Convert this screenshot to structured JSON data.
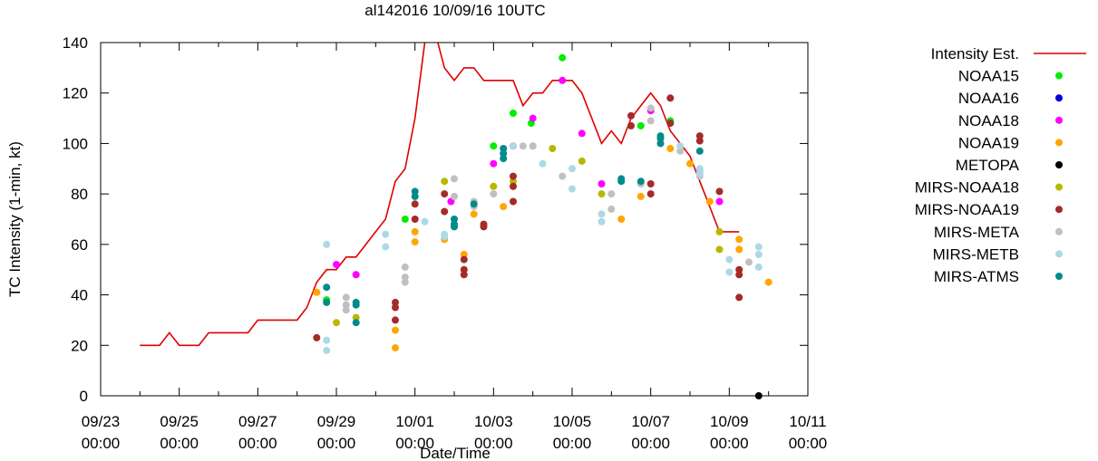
{
  "chart_data": {
    "type": "scatter",
    "title": "al142016 10/09/16 10UTC",
    "xlabel": "Date/Time",
    "ylabel": "TC Intensity (1-min, kt)",
    "ylim": [
      0,
      140
    ],
    "yticks": [
      0,
      20,
      40,
      60,
      80,
      100,
      120,
      140
    ],
    "xlim": [
      "2016-09-23 00:00",
      "2016-10-11 00:00"
    ],
    "xticks": [
      {
        "x": "2016-09-23 00:00",
        "date": "09/23",
        "time": "00:00"
      },
      {
        "x": "2016-09-25 00:00",
        "date": "09/25",
        "time": "00:00"
      },
      {
        "x": "2016-09-27 00:00",
        "date": "09/27",
        "time": "00:00"
      },
      {
        "x": "2016-09-29 00:00",
        "date": "09/29",
        "time": "00:00"
      },
      {
        "x": "2016-10-01 00:00",
        "date": "10/01",
        "time": "00:00"
      },
      {
        "x": "2016-10-03 00:00",
        "date": "10/03",
        "time": "00:00"
      },
      {
        "x": "2016-10-05 00:00",
        "date": "10/05",
        "time": "00:00"
      },
      {
        "x": "2016-10-07 00:00",
        "date": "10/07",
        "time": "00:00"
      },
      {
        "x": "2016-10-09 00:00",
        "date": "10/09",
        "time": "00:00"
      },
      {
        "x": "2016-10-11 00:00",
        "date": "10/11",
        "time": "00:00"
      }
    ],
    "legend_position": "right, outside plot",
    "series": [
      {
        "name": "Intensity Est.",
        "kind": "line",
        "color": "#e00000",
        "points": [
          [
            "2016-09-24 00:00",
            20
          ],
          [
            "2016-09-24 12:00",
            20
          ],
          [
            "2016-09-24 18:00",
            25
          ],
          [
            "2016-09-25 00:00",
            20
          ],
          [
            "2016-09-25 12:00",
            20
          ],
          [
            "2016-09-25 18:00",
            25
          ],
          [
            "2016-09-26 12:00",
            25
          ],
          [
            "2016-09-26 18:00",
            25
          ],
          [
            "2016-09-27 00:00",
            30
          ],
          [
            "2016-09-28 00:00",
            30
          ],
          [
            "2016-09-28 06:00",
            35
          ],
          [
            "2016-09-28 12:00",
            45
          ],
          [
            "2016-09-28 18:00",
            50
          ],
          [
            "2016-09-29 00:00",
            50
          ],
          [
            "2016-09-29 06:00",
            55
          ],
          [
            "2016-09-29 12:00",
            55
          ],
          [
            "2016-09-29 18:00",
            60
          ],
          [
            "2016-09-30 00:00",
            65
          ],
          [
            "2016-09-30 06:00",
            70
          ],
          [
            "2016-09-30 12:00",
            85
          ],
          [
            "2016-09-30 18:00",
            90
          ],
          [
            "2016-10-01 00:00",
            110
          ],
          [
            "2016-10-01 06:00",
            140
          ],
          [
            "2016-10-01 12:00",
            145
          ],
          [
            "2016-10-01 18:00",
            130
          ],
          [
            "2016-10-02 00:00",
            125
          ],
          [
            "2016-10-02 06:00",
            130
          ],
          [
            "2016-10-02 12:00",
            130
          ],
          [
            "2016-10-02 18:00",
            125
          ],
          [
            "2016-10-03 12:00",
            125
          ],
          [
            "2016-10-03 18:00",
            115
          ],
          [
            "2016-10-04 00:00",
            120
          ],
          [
            "2016-10-04 06:00",
            120
          ],
          [
            "2016-10-04 12:00",
            125
          ],
          [
            "2016-10-05 00:00",
            125
          ],
          [
            "2016-10-05 06:00",
            120
          ],
          [
            "2016-10-05 12:00",
            110
          ],
          [
            "2016-10-05 18:00",
            100
          ],
          [
            "2016-10-06 00:00",
            105
          ],
          [
            "2016-10-06 06:00",
            100
          ],
          [
            "2016-10-06 12:00",
            110
          ],
          [
            "2016-10-06 18:00",
            115
          ],
          [
            "2016-10-07 00:00",
            120
          ],
          [
            "2016-10-07 06:00",
            115
          ],
          [
            "2016-10-07 12:00",
            105
          ],
          [
            "2016-10-07 18:00",
            100
          ],
          [
            "2016-10-08 00:00",
            95
          ],
          [
            "2016-10-08 06:00",
            85
          ],
          [
            "2016-10-08 12:00",
            75
          ],
          [
            "2016-10-08 18:00",
            65
          ],
          [
            "2016-10-09 06:00",
            65
          ]
        ]
      },
      {
        "name": "NOAA15",
        "kind": "points",
        "color": "#00ee00",
        "points": [
          [
            "2016-09-28 18:00",
            38
          ],
          [
            "2016-09-30 18:00",
            70
          ],
          [
            "2016-10-03 00:00",
            99
          ],
          [
            "2016-10-03 12:00",
            112
          ],
          [
            "2016-10-03 23:00",
            108
          ],
          [
            "2016-10-04 18:00",
            134
          ],
          [
            "2016-10-06 18:00",
            107
          ],
          [
            "2016-10-07 12:00",
            109
          ]
        ]
      },
      {
        "name": "NOAA16",
        "kind": "points",
        "color": "#0000dd",
        "points": []
      },
      {
        "name": "NOAA18",
        "kind": "points",
        "color": "#ff00ff",
        "points": [
          [
            "2016-09-29 00:00",
            52
          ],
          [
            "2016-09-29 12:00",
            48
          ],
          [
            "2016-10-01 22:00",
            77
          ],
          [
            "2016-10-03 00:00",
            92
          ],
          [
            "2016-10-03 12:00",
            99
          ],
          [
            "2016-10-04 00:00",
            110
          ],
          [
            "2016-10-04 18:00",
            125
          ],
          [
            "2016-10-05 06:00",
            104
          ],
          [
            "2016-10-05 18:00",
            84
          ],
          [
            "2016-10-07 00:00",
            113
          ],
          [
            "2016-10-08 18:00",
            77
          ]
        ]
      },
      {
        "name": "NOAA19",
        "kind": "points",
        "color": "#ffa500",
        "points": [
          [
            "2016-09-28 12:00",
            41
          ],
          [
            "2016-09-30 12:00",
            19
          ],
          [
            "2016-09-30 12:00",
            26
          ],
          [
            "2016-10-01 00:00",
            61
          ],
          [
            "2016-10-01 00:00",
            65
          ],
          [
            "2016-10-01 18:00",
            62
          ],
          [
            "2016-10-02 06:00",
            56
          ],
          [
            "2016-10-02 12:00",
            72
          ],
          [
            "2016-10-03 06:00",
            75
          ],
          [
            "2016-10-06 06:00",
            70
          ],
          [
            "2016-10-06 18:00",
            79
          ],
          [
            "2016-10-07 12:00",
            98
          ],
          [
            "2016-10-08 00:00",
            92
          ],
          [
            "2016-10-08 12:00",
            77
          ],
          [
            "2016-10-09 06:00",
            62
          ],
          [
            "2016-10-09 06:00",
            58
          ],
          [
            "2016-10-10 00:00",
            45
          ]
        ]
      },
      {
        "name": "METOPA",
        "kind": "points",
        "color": "#000000",
        "points": [
          [
            "2016-10-09 18:00",
            0
          ]
        ]
      },
      {
        "name": "MIRS-NOAA18",
        "kind": "points",
        "color": "#b8b800",
        "points": [
          [
            "2016-09-29 00:00",
            29
          ],
          [
            "2016-09-29 12:00",
            31
          ],
          [
            "2016-10-01 18:00",
            85
          ],
          [
            "2016-10-03 00:00",
            83
          ],
          [
            "2016-10-03 12:00",
            85
          ],
          [
            "2016-10-04 00:00",
            99
          ],
          [
            "2016-10-04 12:00",
            98
          ],
          [
            "2016-10-05 06:00",
            93
          ],
          [
            "2016-10-05 18:00",
            80
          ],
          [
            "2016-10-08 18:00",
            65
          ],
          [
            "2016-10-08 18:00",
            58
          ]
        ]
      },
      {
        "name": "MIRS-NOAA19",
        "kind": "points",
        "color": "#a52a2a",
        "points": [
          [
            "2016-09-28 12:00",
            23
          ],
          [
            "2016-09-30 12:00",
            30
          ],
          [
            "2016-09-30 12:00",
            35
          ],
          [
            "2016-09-30 12:00",
            37
          ],
          [
            "2016-10-01 00:00",
            70
          ],
          [
            "2016-10-01 00:00",
            76
          ],
          [
            "2016-10-01 18:00",
            80
          ],
          [
            "2016-10-01 18:00",
            73
          ],
          [
            "2016-10-02 06:00",
            48
          ],
          [
            "2016-10-02 06:00",
            50
          ],
          [
            "2016-10-02 06:00",
            54
          ],
          [
            "2016-10-02 18:00",
            67
          ],
          [
            "2016-10-02 18:00",
            68
          ],
          [
            "2016-10-03 12:00",
            77
          ],
          [
            "2016-10-03 12:00",
            83
          ],
          [
            "2016-10-03 12:00",
            87
          ],
          [
            "2016-10-06 12:00",
            107
          ],
          [
            "2016-10-06 12:00",
            111
          ],
          [
            "2016-10-07 00:00",
            80
          ],
          [
            "2016-10-07 00:00",
            84
          ],
          [
            "2016-10-07 12:00",
            108
          ],
          [
            "2016-10-07 12:00",
            118
          ],
          [
            "2016-10-08 06:00",
            103
          ],
          [
            "2016-10-08 06:00",
            101
          ],
          [
            "2016-10-08 18:00",
            81
          ],
          [
            "2016-10-09 06:00",
            48
          ],
          [
            "2016-10-09 06:00",
            50
          ],
          [
            "2016-10-09 06:00",
            39
          ]
        ]
      },
      {
        "name": "MIRS-META",
        "kind": "points",
        "color": "#c0c0c0",
        "points": [
          [
            "2016-09-29 06:00",
            34
          ],
          [
            "2016-09-29 06:00",
            36
          ],
          [
            "2016-09-29 06:00",
            39
          ],
          [
            "2016-09-30 18:00",
            45
          ],
          [
            "2016-09-30 18:00",
            47
          ],
          [
            "2016-09-30 18:00",
            51
          ],
          [
            "2016-10-02 00:00",
            79
          ],
          [
            "2016-10-02 00:00",
            86
          ],
          [
            "2016-10-02 12:00",
            75
          ],
          [
            "2016-10-02 12:00",
            77
          ],
          [
            "2016-10-03 00:00",
            80
          ],
          [
            "2016-10-03 18:00",
            99
          ],
          [
            "2016-10-04 00:00",
            99
          ],
          [
            "2016-10-04 18:00",
            87
          ],
          [
            "2016-10-06 00:00",
            74
          ],
          [
            "2016-10-06 00:00",
            80
          ],
          [
            "2016-10-06 18:00",
            84
          ],
          [
            "2016-10-07 00:00",
            109
          ],
          [
            "2016-10-07 00:00",
            114
          ],
          [
            "2016-10-07 18:00",
            97
          ],
          [
            "2016-10-08 06:00",
            89
          ],
          [
            "2016-10-08 06:00",
            87
          ],
          [
            "2016-10-09 12:00",
            53
          ]
        ]
      },
      {
        "name": "MIRS-METB",
        "kind": "points",
        "color": "#add8e6",
        "points": [
          [
            "2016-09-28 18:00",
            60
          ],
          [
            "2016-09-28 18:00",
            22
          ],
          [
            "2016-09-28 18:00",
            18
          ],
          [
            "2016-09-30 06:00",
            59
          ],
          [
            "2016-09-30 06:00",
            64
          ],
          [
            "2016-10-01 06:00",
            69
          ],
          [
            "2016-10-01 18:00",
            63
          ],
          [
            "2016-10-01 18:00",
            64
          ],
          [
            "2016-10-03 12:00",
            99
          ],
          [
            "2016-10-04 06:00",
            92
          ],
          [
            "2016-10-05 00:00",
            82
          ],
          [
            "2016-10-05 00:00",
            90
          ],
          [
            "2016-10-05 18:00",
            69
          ],
          [
            "2016-10-05 18:00",
            72
          ],
          [
            "2016-10-07 18:00",
            99
          ],
          [
            "2016-10-08 06:00",
            88
          ],
          [
            "2016-10-08 06:00",
            90
          ],
          [
            "2016-10-09 00:00",
            49
          ],
          [
            "2016-10-09 00:00",
            54
          ],
          [
            "2016-10-09 18:00",
            51
          ],
          [
            "2016-10-09 18:00",
            56
          ],
          [
            "2016-10-09 18:00",
            59
          ]
        ]
      },
      {
        "name": "MIRS-ATMS",
        "kind": "points",
        "color": "#008b8b",
        "points": [
          [
            "2016-09-28 18:00",
            37
          ],
          [
            "2016-09-28 18:00",
            43
          ],
          [
            "2016-09-29 12:00",
            29
          ],
          [
            "2016-09-29 12:00",
            36
          ],
          [
            "2016-09-29 12:00",
            37
          ],
          [
            "2016-10-01 00:00",
            79
          ],
          [
            "2016-10-01 00:00",
            81
          ],
          [
            "2016-10-02 00:00",
            67
          ],
          [
            "2016-10-02 00:00",
            68
          ],
          [
            "2016-10-02 00:00",
            70
          ],
          [
            "2016-10-02 12:00",
            76
          ],
          [
            "2016-10-03 06:00",
            94
          ],
          [
            "2016-10-03 06:00",
            96
          ],
          [
            "2016-10-03 06:00",
            98
          ],
          [
            "2016-10-06 06:00",
            85
          ],
          [
            "2016-10-06 06:00",
            86
          ],
          [
            "2016-10-06 18:00",
            85
          ],
          [
            "2016-10-07 06:00",
            100
          ],
          [
            "2016-10-07 06:00",
            102
          ],
          [
            "2016-10-07 06:00",
            103
          ],
          [
            "2016-10-08 06:00",
            97
          ]
        ]
      }
    ]
  }
}
